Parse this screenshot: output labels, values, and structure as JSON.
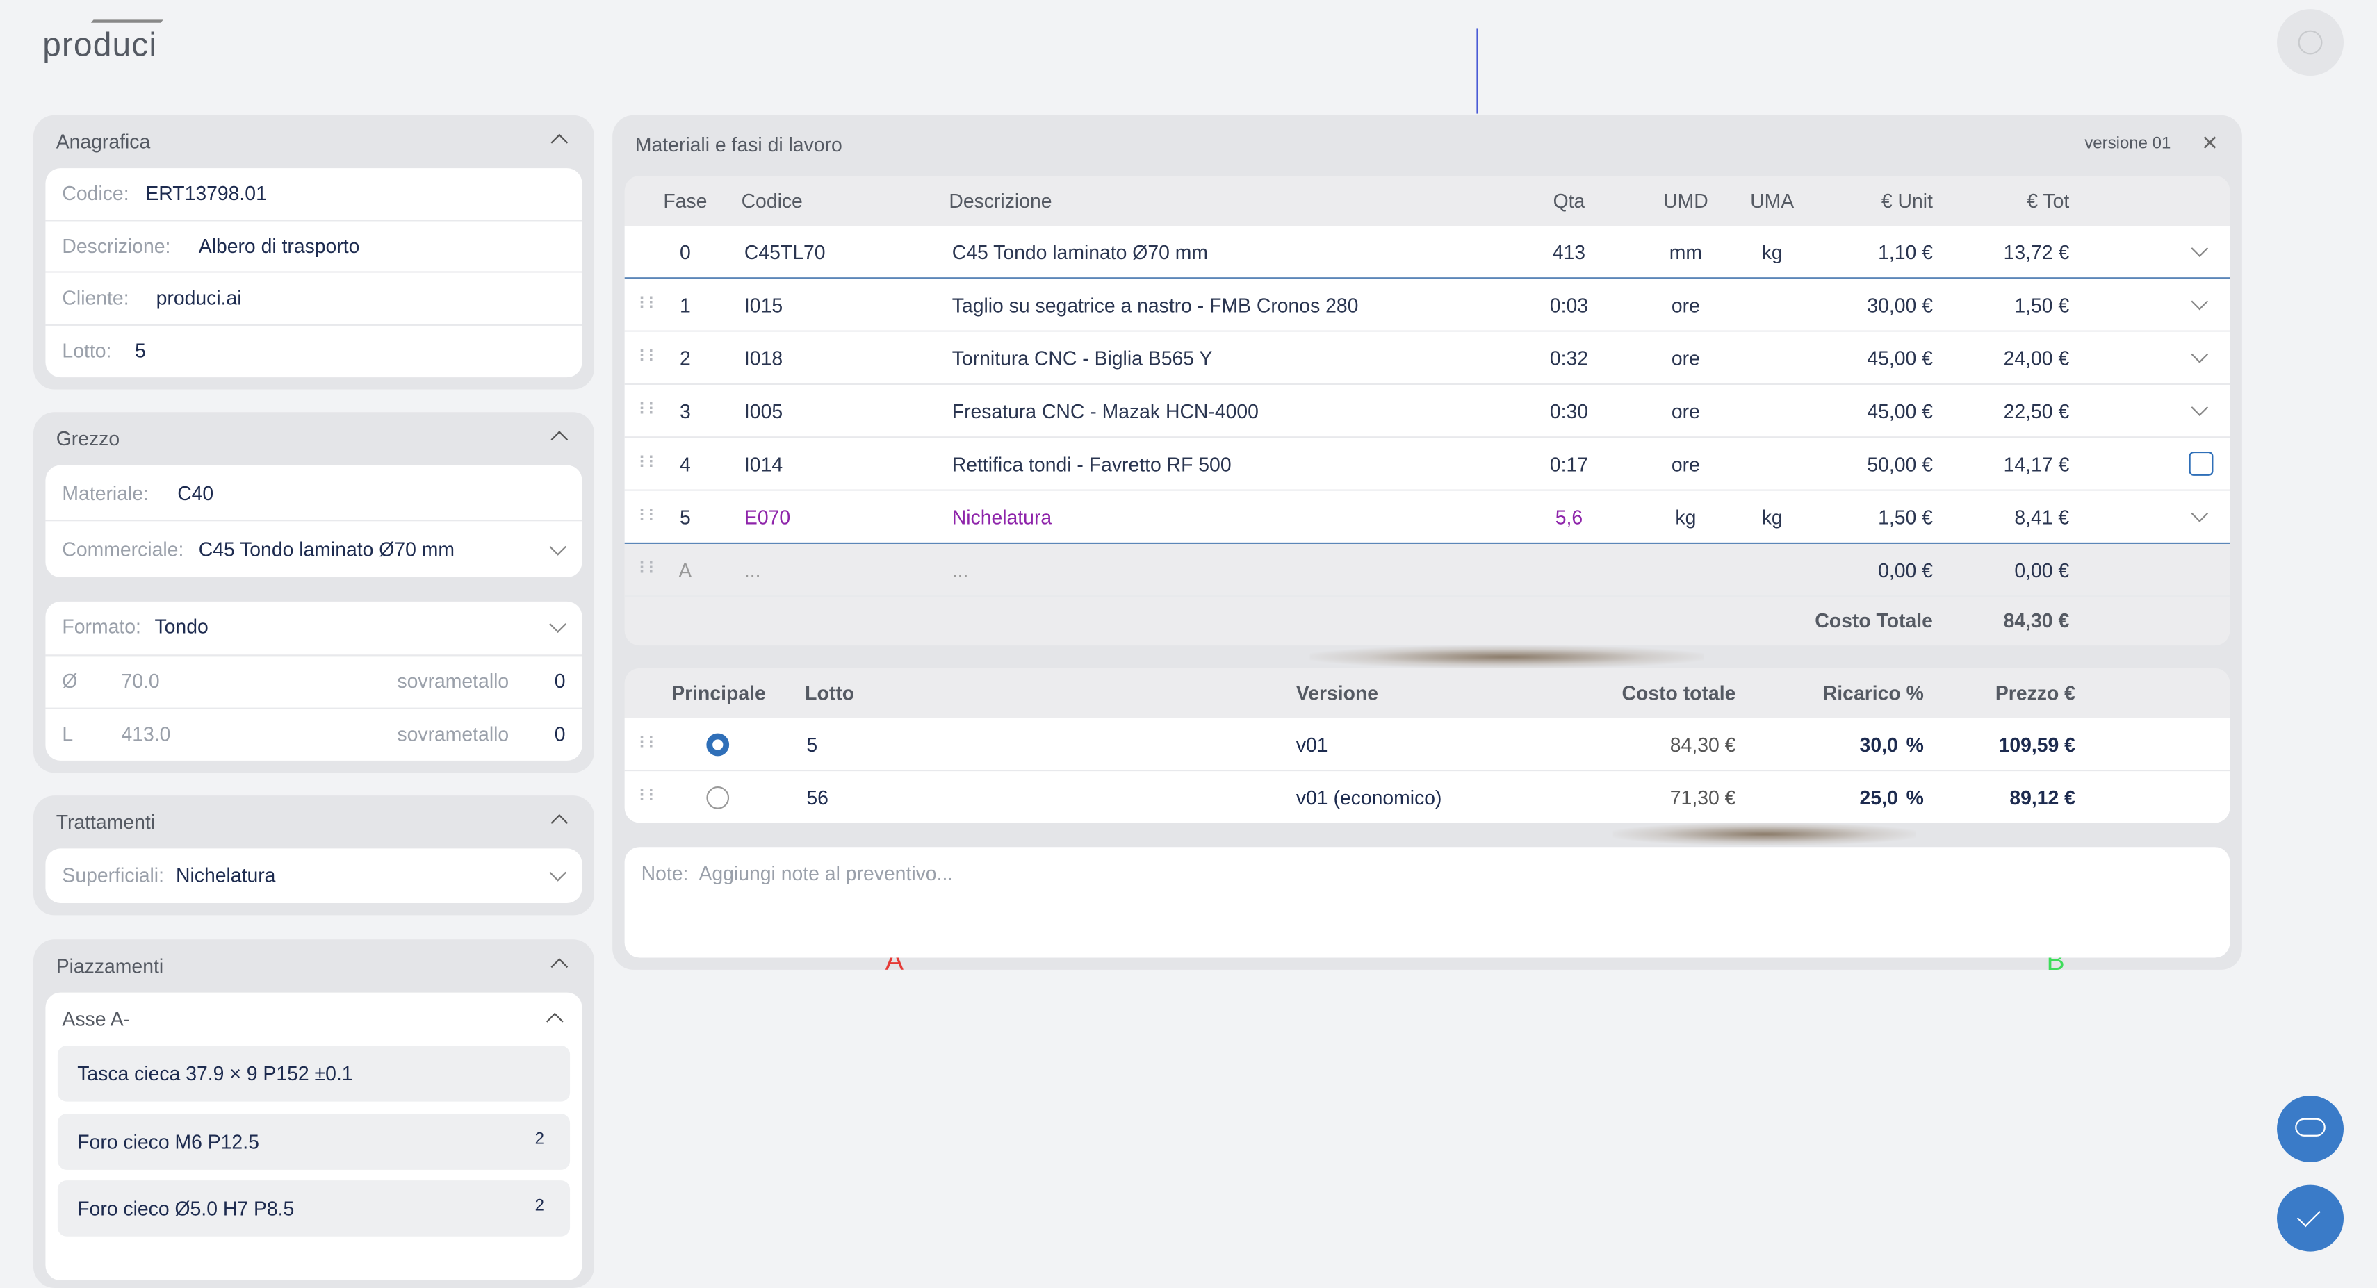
{
  "logo": "produci",
  "anagrafica": {
    "title": "Anagrafica",
    "fields": [
      {
        "label": "Codice:",
        "value": "ERT13798.01"
      },
      {
        "label": "Descrizione:",
        "value": "Albero di trasporto"
      },
      {
        "label": "Cliente:",
        "value": "produci.ai"
      },
      {
        "label": "Lotto:",
        "value": "5"
      }
    ]
  },
  "grezzo": {
    "title": "Grezzo",
    "fields": [
      {
        "label": "Materiale:",
        "value": "C40"
      },
      {
        "label": "Commerciale:",
        "value": "C45 Tondo laminato Ø70 mm"
      }
    ],
    "formato": {
      "label": "Formato:",
      "value": "Tondo"
    },
    "dims": [
      {
        "symbol": "Ø",
        "value": "70.0",
        "extra_label": "sovrametallo",
        "extra": "0"
      },
      {
        "symbol": "L",
        "value": "413.0",
        "extra_label": "sovrametallo",
        "extra": "0"
      }
    ]
  },
  "trattamenti": {
    "title": "Trattamenti",
    "fields": [
      {
        "label": "Superficiali:",
        "value": "Nichelatura"
      }
    ]
  },
  "piazzamenti": {
    "title": "Piazzamenti",
    "group": "Asse A-",
    "items": [
      {
        "label": "Tasca cieca 37.9 × 9 P152 ±0.1"
      },
      {
        "label": "Foro cieco M6 P12.5",
        "count": "2"
      },
      {
        "label": "Foro cieco Ø5.0 H7 P8.5",
        "count": "2"
      }
    ]
  },
  "materials": {
    "title": "Materiali e fasi di lavoro",
    "version": "versione 01",
    "columns": {
      "fase": "Fase",
      "codice": "Codice",
      "descrizione": "Descrizione",
      "qta": "Qta",
      "umd": "UMD",
      "uma": "UMA",
      "unit": "€ Unit",
      "tot": "€ Tot"
    },
    "rows": [
      {
        "fase": "0",
        "codice": "C45TL70",
        "descrizione": "C45 Tondo laminato Ø70 mm",
        "qta": "413",
        "umd": "mm",
        "uma": "kg",
        "unit": "1,10 €",
        "tot": "13,72 €"
      },
      {
        "fase": "1",
        "codice": "I015",
        "descrizione": "Taglio su segatrice a nastro - FMB Cronos 280",
        "qta": "0:03",
        "umd": "ore",
        "unit": "30,00 €",
        "tot": "1,50 €"
      },
      {
        "fase": "2",
        "codice": "I018",
        "descrizione": "Tornitura CNC - Biglia B565 Y",
        "qta": "0:32",
        "umd": "ore",
        "unit": "45,00 €",
        "tot": "24,00 €"
      },
      {
        "fase": "3",
        "codice": "I005",
        "descrizione": "Fresatura CNC - Mazak HCN-4000",
        "qta": "0:30",
        "umd": "ore",
        "unit": "45,00 €",
        "tot": "22,50 €"
      },
      {
        "fase": "4",
        "codice": "I014",
        "descrizione": "Rettifica tondi - Favretto RF 500",
        "qta": "0:17",
        "umd": "ore",
        "unit": "50,00 €",
        "tot": "14,17 €"
      },
      {
        "fase": "5",
        "codice": "E070",
        "descrizione": "Nichelatura",
        "qta": "5,6",
        "umd": "kg",
        "uma": "kg",
        "unit": "1,50 €",
        "tot": "8,41 €"
      },
      {
        "fase": "A",
        "codice": "...",
        "descrizione": "...",
        "unit": "0,00 €",
        "tot": "0,00 €"
      }
    ],
    "total_label": "Costo Totale",
    "total": "84,30 €"
  },
  "versions": {
    "columns": {
      "principale": "Principale",
      "lotto": "Lotto",
      "versione": "Versione",
      "costo": "Costo totale",
      "ricarico": "Ricarico %",
      "prezzo": "Prezzo €"
    },
    "rows": [
      {
        "selected": true,
        "lotto": "5",
        "versione": "v01",
        "costo": "84,30 €",
        "ricarico": "30,0",
        "unit": "%",
        "prezzo": "109,59 €"
      },
      {
        "selected": false,
        "lotto": "56",
        "versione": "v01 (economico)",
        "costo": "71,30 €",
        "ricarico": "25,0",
        "unit": "%",
        "prezzo": "89,12 €"
      }
    ]
  },
  "notes": {
    "label": "Note:",
    "placeholder": "Aggiungi note al preventivo..."
  },
  "markers": [
    "A",
    "B"
  ]
}
